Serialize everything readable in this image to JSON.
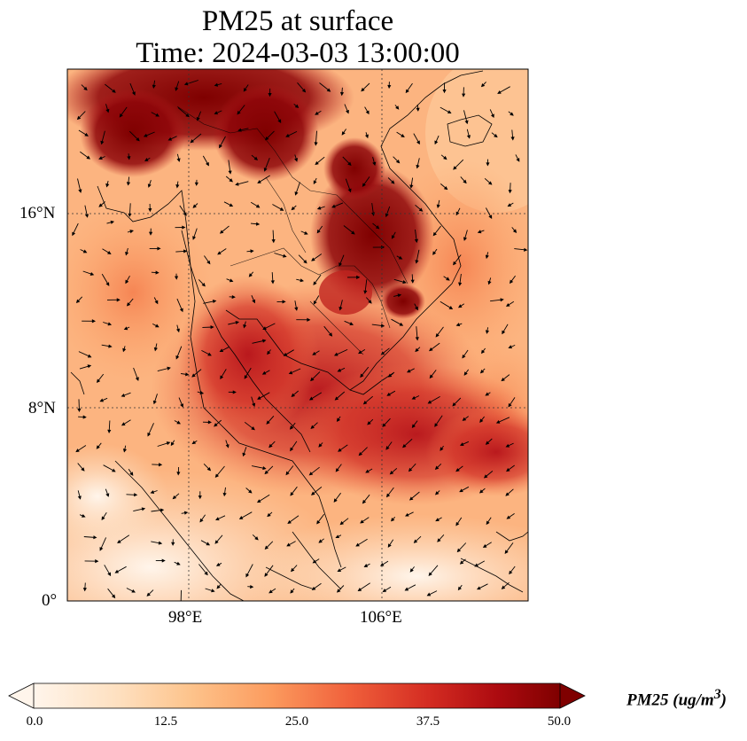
{
  "title": {
    "line1": "PM25 at surface",
    "line2": "Time: 2024-03-03 13:00:00"
  },
  "map": {
    "lat_labels": [
      "16°N",
      "8°N",
      "0°"
    ],
    "lon_labels": [
      "98°E",
      "106°E"
    ],
    "extent": {
      "lon_min": 93,
      "lon_max": 112,
      "lat_min": 0,
      "lat_max": 22
    }
  },
  "colorbar": {
    "label_text": "PM25 (ug/m",
    "label_sup": "3",
    "label_close": ")",
    "ticks": [
      "0.0",
      "12.5",
      "25.0",
      "37.5",
      "50.0"
    ],
    "colors": [
      "#fff5eb",
      "#fdd9b0",
      "#fdae6b",
      "#f16a3f",
      "#cb1c1b",
      "#a50e12",
      "#7f0000"
    ]
  }
}
